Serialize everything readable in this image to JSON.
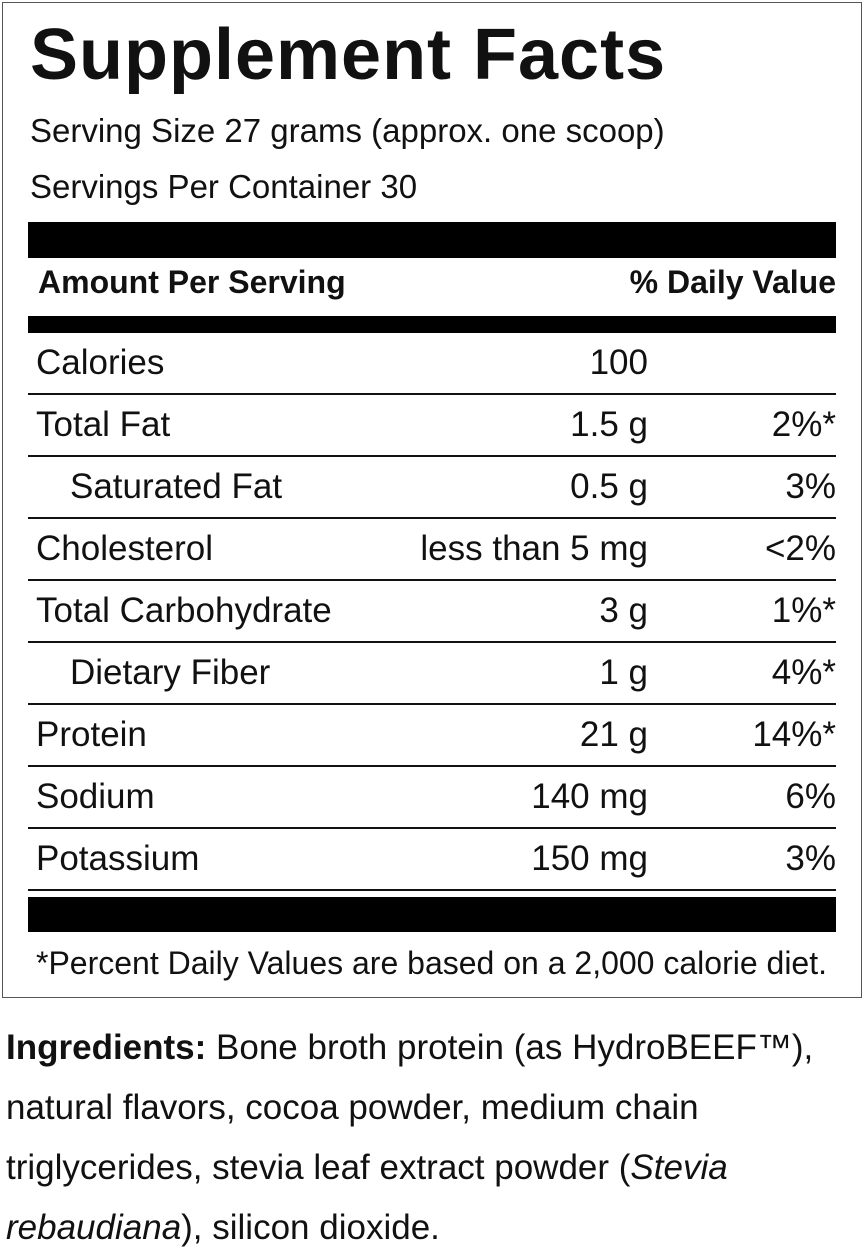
{
  "title": "Supplement Facts",
  "serving_size": "Serving Size 27 grams (approx. one scoop)",
  "servings_per_container": "Servings Per Container 30",
  "header": {
    "amount": "Amount Per Serving",
    "daily_value": "% Daily Value"
  },
  "rows": [
    {
      "label": "Calories",
      "amount": "100"
    },
    {
      "label": "Total Fat",
      "amount": "1.5 g",
      "dv": "2%*"
    },
    {
      "label": "Saturated Fat",
      "amount": "0.5 g",
      "dv": "3%",
      "indent": true
    },
    {
      "label": "Cholesterol",
      "amount": "less than 5 mg",
      "dv": "<2%"
    },
    {
      "label": "Total Carbohydrate",
      "amount": "3 g",
      "dv": "1%*"
    },
    {
      "label": "Dietary Fiber",
      "amount": "1 g",
      "dv": "4%*",
      "indent": true
    },
    {
      "label": "Protein",
      "amount": "21 g",
      "dv": "14%*"
    },
    {
      "label": "Sodium",
      "amount": "140 mg",
      "dv": "6%"
    },
    {
      "label": "Potassium",
      "amount": "150 mg",
      "dv": "3%"
    }
  ],
  "footnote": "*Percent Daily Values are based on a 2,000 calorie diet.",
  "ingredients": {
    "label": "Ingredients:",
    "text": "Bone broth protein (as HydroBEEF™), natural flavors, cocoa powder, medium chain triglycerides, stevia leaf extract powder (",
    "italic": "Stevia rebaudiana",
    "end": "), silicon dioxide."
  }
}
